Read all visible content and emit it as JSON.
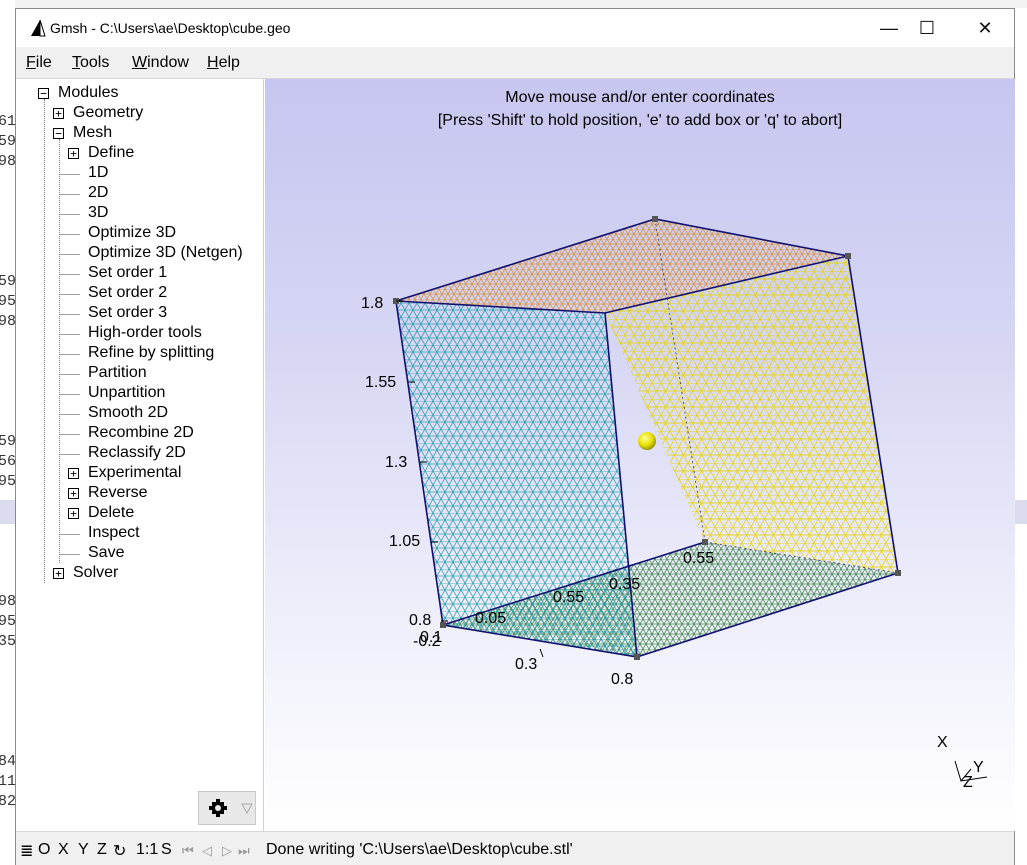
{
  "window": {
    "title": "Gmsh - C:\\Users\\ae\\Desktop\\cube.geo",
    "minimize_glyph": "—",
    "maximize_glyph": "☐",
    "close_glyph": "✕"
  },
  "menu": {
    "file": {
      "hot": "F",
      "rest": "ile"
    },
    "tools": {
      "hot": "T",
      "rest": "ools"
    },
    "window": {
      "hot": "W",
      "rest": "indow"
    },
    "help": {
      "hot": "H",
      "rest": "elp"
    }
  },
  "tree": {
    "modules": "Modules",
    "geometry": "Geometry",
    "mesh": "Mesh",
    "mesh_items": {
      "define": "Define",
      "d1": "1D",
      "d2": "2D",
      "d3": "3D",
      "optimize3d": "Optimize 3D",
      "optimize3d_netgen": "Optimize 3D (Netgen)",
      "order1": "Set order 1",
      "order2": "Set order 2",
      "order3": "Set order 3",
      "highorder": "High-order tools",
      "refine": "Refine by splitting",
      "partition": "Partition",
      "unpartition": "Unpartition",
      "smooth2d": "Smooth 2D",
      "recombine2d": "Recombine 2D",
      "reclassify2d": "Reclassify 2D",
      "experimental": "Experimental",
      "reverse": "Reverse",
      "delete": "Delete",
      "inspect": "Inspect",
      "save": "Save"
    },
    "solver": "Solver",
    "expand_glyph": "+",
    "collapse_glyph": "−"
  },
  "viewport": {
    "message_line1": "Move mouse and/or enter coordinates",
    "message_line2": "[Press 'Shift' to hold position, 'e' to add box or 'q' to abort]",
    "z_ticks": [
      "1.8",
      "1.55",
      "1.3",
      "1.05",
      "0.8"
    ],
    "y_ticks": [
      "-0.2",
      "0.05",
      "0.3",
      "0.55",
      "0.8"
    ],
    "x_ticks": [
      "0.1",
      "0.35",
      "0.55",
      "0.8"
    ],
    "axis_labels": {
      "x": "X",
      "y": "Y",
      "z": "Z"
    },
    "colors": {
      "face_teal": "#1f9aa8",
      "face_yellow": "#f0e020",
      "face_green": "#2a7a3a",
      "face_orange": "#e08830",
      "edges": "#101070"
    }
  },
  "statusbar": {
    "menu_glyph": "≣",
    "o": "O",
    "x": "X",
    "y": "Y",
    "z": "Z",
    "rotate_glyph": "↻",
    "scale": "1:1",
    "s": "S",
    "nav_first": "⏮",
    "nav_prev": "◁",
    "nav_play": "▷",
    "nav_next": "⏭",
    "message": "Done writing 'C:\\Users\\ae\\Desktop\\cube.stl'"
  },
  "desktop_fragments": [
    "61",
    "59",
    "98",
    "59",
    "95",
    "98",
    "59",
    "56",
    "95",
    "98",
    "95",
    "35",
    "84",
    "11",
    "82"
  ]
}
